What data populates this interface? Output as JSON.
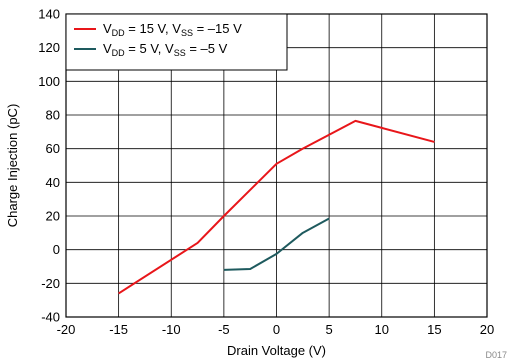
{
  "chart_data": {
    "type": "line",
    "xlabel": "Drain Voltage (V)",
    "ylabel": "Charge Injection (pC)",
    "xlim": [
      -20,
      20
    ],
    "ylim": [
      -40,
      140
    ],
    "x_ticks": [
      -20,
      -15,
      -10,
      -5,
      0,
      5,
      10,
      15,
      20
    ],
    "y_ticks": [
      -40,
      -20,
      0,
      20,
      40,
      60,
      80,
      100,
      120,
      140
    ],
    "x_tick_labels": [
      "-20",
      "-15",
      "-10",
      "-5",
      "0",
      "5",
      "10",
      "15",
      "20"
    ],
    "y_tick_labels": [
      "-40",
      "-20",
      "0",
      "20",
      "40",
      "60",
      "80",
      "100",
      "120",
      "140"
    ],
    "grid": true,
    "legend_position": "top-left",
    "figure_code": "D017",
    "series": [
      {
        "name": "V_DD = 15 V, V_SS = –15 V",
        "legend": {
          "a": "V",
          "a_sub": "DD",
          "mid": " = 15 V, V",
          "b_sub": "SS",
          "tail": " = –15 V"
        },
        "color": "#e8161a",
        "x": [
          -15,
          -7.5,
          -5,
          0,
          2.5,
          7.5,
          15
        ],
        "y": [
          -26,
          4,
          20,
          51,
          60,
          76.5,
          64
        ]
      },
      {
        "name": "V_DD = 5 V, V_SS = –5 V",
        "legend": {
          "a": "V",
          "a_sub": "DD",
          "mid": " = 5 V, V",
          "b_sub": "SS",
          "tail": " = –5 V"
        },
        "color": "#1e5a5e",
        "x": [
          -5,
          -2.5,
          0,
          2.5,
          5
        ],
        "y": [
          -12,
          -11.5,
          -2.5,
          10,
          18.5
        ]
      }
    ]
  }
}
